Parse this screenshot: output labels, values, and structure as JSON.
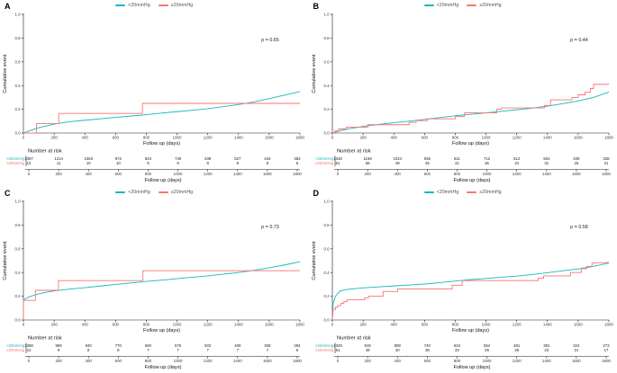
{
  "figure_colors": {
    "series_lt20": "#17b8be",
    "series_ge20": "#f8766d",
    "axis": "#1a1a1a",
    "tick_text": "#3a3a3a"
  },
  "chart_data": [
    {
      "panel": "A",
      "type": "line",
      "title": "",
      "xlabel": "Follow up (days)",
      "ylabel": "Cumulative event",
      "xlim": [
        0,
        1800
      ],
      "ylim": [
        0.0,
        1.0
      ],
      "x_ticks": [
        0,
        200,
        400,
        600,
        800,
        1000,
        1200,
        1400,
        1600,
        1800
      ],
      "y_ticks": [
        "0.0",
        "0.2",
        "0.4",
        "0.6",
        "0.8",
        "1.0"
      ],
      "grid": false,
      "legend_position": "top",
      "annotation": "p = 0.65",
      "series": [
        {
          "name": "<20mmHg",
          "color": "#17b8be",
          "style": "line",
          "points": [
            [
              0,
              0
            ],
            [
              30,
              0.015
            ],
            [
              100,
              0.045
            ],
            [
              200,
              0.075
            ],
            [
              300,
              0.095
            ],
            [
              400,
              0.108
            ],
            [
              500,
              0.12
            ],
            [
              600,
              0.132
            ],
            [
              700,
              0.143
            ],
            [
              800,
              0.155
            ],
            [
              900,
              0.168
            ],
            [
              1000,
              0.18
            ],
            [
              1100,
              0.192
            ],
            [
              1200,
              0.205
            ],
            [
              1300,
              0.222
            ],
            [
              1400,
              0.24
            ],
            [
              1500,
              0.262
            ],
            [
              1600,
              0.29
            ],
            [
              1700,
              0.32
            ],
            [
              1800,
              0.35
            ]
          ]
        },
        {
          "name": "≥20mmHg",
          "color": "#f8766d",
          "style": "step",
          "points": [
            [
              0,
              0
            ],
            [
              85,
              0
            ],
            [
              85,
              0.08
            ],
            [
              230,
              0.08
            ],
            [
              230,
              0.165
            ],
            [
              775,
              0.165
            ],
            [
              775,
              0.25
            ],
            [
              1800,
              0.25
            ]
          ]
        }
      ],
      "number_at_risk": {
        "title": "Number at risk",
        "xlabel": "Follow up (days)",
        "x": [
          0,
          200,
          400,
          600,
          800,
          1000,
          1200,
          1400,
          1600,
          1800
        ],
        "rows": [
          {
            "label": "<20mmHg",
            "color": "#17b8be",
            "values": [
              "1397",
              "1214",
              "1063",
              "972",
              "843",
              "739",
              "638",
              "527",
              "426",
              "353"
            ]
          },
          {
            "label": "≥20mmHg",
            "color": "#f8766d",
            "values": [
              "12",
              "11",
              "10",
              "10",
              "9",
              "9",
              "8",
              "8",
              "8",
              "6"
            ]
          }
        ]
      }
    },
    {
      "panel": "B",
      "type": "line",
      "title": "",
      "xlabel": "Follow up (days)",
      "ylabel": "Cumulative event",
      "xlim": [
        0,
        1800
      ],
      "ylim": [
        0.0,
        1.0
      ],
      "x_ticks": [
        0,
        200,
        400,
        600,
        800,
        1000,
        1200,
        1400,
        1600,
        1800
      ],
      "y_ticks": [
        "0.0",
        "0.2",
        "0.4",
        "0.6",
        "0.8",
        "1.0"
      ],
      "grid": false,
      "legend_position": "top",
      "annotation": "p = 0.44",
      "series": [
        {
          "name": "<20mmHg",
          "color": "#17b8be",
          "style": "line",
          "points": [
            [
              0,
              0
            ],
            [
              50,
              0.018
            ],
            [
              100,
              0.034
            ],
            [
              200,
              0.056
            ],
            [
              300,
              0.072
            ],
            [
              400,
              0.087
            ],
            [
              500,
              0.1
            ],
            [
              600,
              0.115
            ],
            [
              700,
              0.13
            ],
            [
              800,
              0.145
            ],
            [
              900,
              0.158
            ],
            [
              1000,
              0.17
            ],
            [
              1100,
              0.183
            ],
            [
              1200,
              0.196
            ],
            [
              1300,
              0.21
            ],
            [
              1400,
              0.227
            ],
            [
              1500,
              0.248
            ],
            [
              1600,
              0.27
            ],
            [
              1700,
              0.3
            ],
            [
              1800,
              0.345
            ]
          ]
        },
        {
          "name": "≥20mmHg",
          "color": "#f8766d",
          "style": "step",
          "points": [
            [
              0,
              0
            ],
            [
              15,
              0
            ],
            [
              15,
              0.017
            ],
            [
              40,
              0.017
            ],
            [
              40,
              0.034
            ],
            [
              90,
              0.034
            ],
            [
              90,
              0.05
            ],
            [
              230,
              0.05
            ],
            [
              230,
              0.07
            ],
            [
              500,
              0.07
            ],
            [
              500,
              0.09
            ],
            [
              545,
              0.09
            ],
            [
              545,
              0.105
            ],
            [
              620,
              0.105
            ],
            [
              620,
              0.12
            ],
            [
              800,
              0.12
            ],
            [
              800,
              0.14
            ],
            [
              860,
              0.14
            ],
            [
              860,
              0.17
            ],
            [
              1070,
              0.17
            ],
            [
              1070,
              0.2
            ],
            [
              1100,
              0.2
            ],
            [
              1100,
              0.212
            ],
            [
              1380,
              0.212
            ],
            [
              1380,
              0.232
            ],
            [
              1420,
              0.232
            ],
            [
              1420,
              0.28
            ],
            [
              1560,
              0.28
            ],
            [
              1560,
              0.3
            ],
            [
              1600,
              0.3
            ],
            [
              1600,
              0.322
            ],
            [
              1645,
              0.322
            ],
            [
              1645,
              0.345
            ],
            [
              1680,
              0.345
            ],
            [
              1680,
              0.375
            ],
            [
              1700,
              0.375
            ],
            [
              1700,
              0.41
            ],
            [
              1800,
              0.41
            ]
          ]
        }
      ],
      "number_at_risk": {
        "title": "Number at risk",
        "xlabel": "Follow up (days)",
        "x": [
          0,
          200,
          400,
          600,
          800,
          1000,
          1200,
          1400,
          1600,
          1800
        ],
        "rows": [
          {
            "label": "<20mmHg",
            "color": "#17b8be",
            "values": [
              "1348",
              "1169",
              "1024",
              "936",
              "811",
              "712",
              "612",
              "504",
              "408",
              "338"
            ]
          },
          {
            "label": "≥20mmHg",
            "color": "#f8766d",
            "values": [
              "61",
              "56",
              "49",
              "46",
              "41",
              "36",
              "34",
              "31",
              "26",
              "21"
            ]
          }
        ]
      }
    },
    {
      "panel": "C",
      "type": "line",
      "title": "",
      "xlabel": "Follow up (days)",
      "ylabel": "Cumulative event",
      "xlim": [
        0,
        1800
      ],
      "ylim": [
        0.0,
        1.0
      ],
      "x_ticks": [
        0,
        200,
        400,
        600,
        800,
        1000,
        1200,
        1400,
        1600,
        1800
      ],
      "y_ticks": [
        "0.0",
        "0.2",
        "0.4",
        "0.6",
        "0.8",
        "1.0"
      ],
      "grid": false,
      "legend_position": "top",
      "annotation": "p = 0.73",
      "series": [
        {
          "name": "<20mmHg",
          "color": "#17b8be",
          "style": "line",
          "points": [
            [
              0,
              0
            ],
            [
              0,
              0.168
            ],
            [
              30,
              0.19
            ],
            [
              60,
              0.205
            ],
            [
              100,
              0.22
            ],
            [
              150,
              0.234
            ],
            [
              200,
              0.245
            ],
            [
              300,
              0.26
            ],
            [
              400,
              0.272
            ],
            [
              500,
              0.286
            ],
            [
              600,
              0.3
            ],
            [
              700,
              0.312
            ],
            [
              800,
              0.325
            ],
            [
              900,
              0.336
            ],
            [
              1000,
              0.348
            ],
            [
              1100,
              0.36
            ],
            [
              1200,
              0.372
            ],
            [
              1300,
              0.386
            ],
            [
              1400,
              0.4
            ],
            [
              1500,
              0.418
            ],
            [
              1600,
              0.44
            ],
            [
              1700,
              0.464
            ],
            [
              1800,
              0.49
            ]
          ]
        },
        {
          "name": "≥20mmHg",
          "color": "#f8766d",
          "style": "step",
          "points": [
            [
              0,
              0
            ],
            [
              0,
              0.165
            ],
            [
              78,
              0.165
            ],
            [
              78,
              0.25
            ],
            [
              228,
              0.25
            ],
            [
              228,
              0.332
            ],
            [
              778,
              0.332
            ],
            [
              778,
              0.415
            ],
            [
              1800,
              0.415
            ]
          ]
        }
      ],
      "number_at_risk": {
        "title": "Number at risk",
        "xlabel": "Follow up (days)",
        "x": [
          0,
          200,
          400,
          600,
          800,
          1000,
          1200,
          1400,
          1600,
          1800
        ],
        "rows": [
          {
            "label": "<20mmHg",
            "color": "#17b8be",
            "values": [
              "1398",
              "959",
              "840",
              "770",
              "660",
              "576",
              "502",
              "409",
              "338",
              "284"
            ]
          },
          {
            "label": "≥20mmHg",
            "color": "#f8766d",
            "values": [
              "12",
              "9",
              "8",
              "8",
              "7",
              "7",
              "7",
              "7",
              "7",
              "6"
            ]
          }
        ]
      }
    },
    {
      "panel": "D",
      "type": "line",
      "title": "",
      "xlabel": "Follow up (days)",
      "ylabel": "Cumulative event",
      "xlim": [
        0,
        1800
      ],
      "ylim": [
        0.0,
        1.0
      ],
      "x_ticks": [
        0,
        200,
        400,
        600,
        800,
        1000,
        1200,
        1400,
        1600,
        1800
      ],
      "y_ticks": [
        "0.0",
        "0.2",
        "0.4",
        "0.6",
        "0.8",
        "1.0"
      ],
      "grid": false,
      "legend_position": "top",
      "annotation": "p = 0.58",
      "series": [
        {
          "name": "<20mmHg",
          "color": "#17b8be",
          "style": "line",
          "points": [
            [
              0,
              0
            ],
            [
              5,
              0.14
            ],
            [
              20,
              0.2
            ],
            [
              50,
              0.245
            ],
            [
              100,
              0.258
            ],
            [
              200,
              0.27
            ],
            [
              300,
              0.279
            ],
            [
              400,
              0.287
            ],
            [
              500,
              0.295
            ],
            [
              600,
              0.303
            ],
            [
              700,
              0.315
            ],
            [
              800,
              0.328
            ],
            [
              900,
              0.34
            ],
            [
              1000,
              0.35
            ],
            [
              1100,
              0.36
            ],
            [
              1200,
              0.37
            ],
            [
              1300,
              0.383
            ],
            [
              1400,
              0.398
            ],
            [
              1500,
              0.414
            ],
            [
              1600,
              0.43
            ],
            [
              1700,
              0.452
            ],
            [
              1800,
              0.48
            ]
          ]
        },
        {
          "name": "≥20mmHg",
          "color": "#f8766d",
          "style": "step",
          "points": [
            [
              0,
              0
            ],
            [
              5,
              0.09
            ],
            [
              20,
              0.09
            ],
            [
              20,
              0.107
            ],
            [
              35,
              0.107
            ],
            [
              35,
              0.122
            ],
            [
              55,
              0.122
            ],
            [
              55,
              0.14
            ],
            [
              75,
              0.14
            ],
            [
              75,
              0.156
            ],
            [
              95,
              0.156
            ],
            [
              95,
              0.17
            ],
            [
              210,
              0.17
            ],
            [
              210,
              0.186
            ],
            [
              235,
              0.186
            ],
            [
              235,
              0.2
            ],
            [
              330,
              0.2
            ],
            [
              330,
              0.24
            ],
            [
              425,
              0.24
            ],
            [
              425,
              0.262
            ],
            [
              780,
              0.262
            ],
            [
              780,
              0.292
            ],
            [
              845,
              0.292
            ],
            [
              845,
              0.332
            ],
            [
              1340,
              0.332
            ],
            [
              1340,
              0.352
            ],
            [
              1375,
              0.352
            ],
            [
              1375,
              0.372
            ],
            [
              1550,
              0.372
            ],
            [
              1550,
              0.4
            ],
            [
              1620,
              0.4
            ],
            [
              1620,
              0.432
            ],
            [
              1655,
              0.432
            ],
            [
              1655,
              0.452
            ],
            [
              1690,
              0.452
            ],
            [
              1690,
              0.48
            ],
            [
              1800,
              0.485
            ]
          ]
        }
      ],
      "number_at_risk": {
        "title": "Number at risk",
        "xlabel": "Follow up (days)",
        "x": [
          0,
          200,
          400,
          600,
          800,
          1000,
          1200,
          1400,
          1600,
          1800
        ],
        "rows": [
          {
            "label": "<20mmHg",
            "color": "#17b8be",
            "values": [
              "1349",
              "919",
              "808",
              "740",
              "634",
              "554",
              "481",
              "381",
              "324",
              "273"
            ]
          },
          {
            "label": "≥20mmHg",
            "color": "#f8766d",
            "values": [
              "61",
              "49",
              "40",
              "38",
              "33",
              "29",
              "28",
              "23",
              "21",
              "17"
            ]
          }
        ]
      }
    }
  ]
}
